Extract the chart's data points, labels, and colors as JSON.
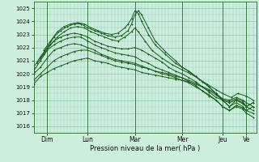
{
  "title": "Pression niveau de la mer( hPa )",
  "ylabel_values": [
    1016,
    1017,
    1018,
    1019,
    1020,
    1021,
    1022,
    1023,
    1024,
    1025
  ],
  "ylim": [
    1015.5,
    1025.5
  ],
  "xlim": [
    0,
    132
  ],
  "bg_color": "#cceedd",
  "grid_color": "#99ccbb",
  "line_color": "#1a5c1a",
  "marker_color": "#1a5c1a",
  "day_ticks": [
    {
      "label": "Dim",
      "x": 8
    },
    {
      "label": "Lun",
      "x": 32
    },
    {
      "label": "Mar",
      "x": 60
    },
    {
      "label": "Mer",
      "x": 88
    },
    {
      "label": "Jeu",
      "x": 112
    },
    {
      "label": "Ve",
      "x": 126
    }
  ],
  "day_lines": [
    8,
    32,
    60,
    88,
    112,
    126
  ],
  "series": [
    [
      0,
      1019.2,
      4,
      1019.8,
      8,
      1020.1,
      12,
      1020.4,
      16,
      1020.6,
      20,
      1020.8,
      24,
      1021.0,
      28,
      1021.1,
      32,
      1021.2,
      36,
      1021.0,
      40,
      1020.9,
      44,
      1020.8,
      48,
      1020.6,
      52,
      1020.5,
      56,
      1020.4,
      60,
      1020.3,
      64,
      1020.1,
      68,
      1020.0,
      72,
      1019.9,
      76,
      1019.8,
      80,
      1019.7,
      84,
      1019.6,
      88,
      1019.5,
      92,
      1019.4,
      96,
      1019.2,
      100,
      1019.0,
      104,
      1018.8,
      108,
      1018.5,
      112,
      1018.1,
      116,
      1018.0,
      120,
      1018.2,
      124,
      1018.0,
      126,
      1017.8,
      130,
      1017.5
    ],
    [
      0,
      1019.5,
      4,
      1020.0,
      8,
      1020.5,
      12,
      1021.0,
      16,
      1021.3,
      20,
      1021.5,
      24,
      1021.7,
      28,
      1021.8,
      32,
      1021.8,
      36,
      1021.6,
      40,
      1021.4,
      44,
      1021.2,
      48,
      1021.0,
      52,
      1020.9,
      56,
      1020.8,
      60,
      1020.7,
      64,
      1020.5,
      68,
      1020.4,
      72,
      1020.2,
      76,
      1020.1,
      80,
      1020.0,
      84,
      1019.8,
      88,
      1019.7,
      92,
      1019.5,
      96,
      1019.3,
      100,
      1019.0,
      104,
      1018.7,
      108,
      1018.4,
      112,
      1018.0,
      116,
      1017.9,
      120,
      1018.1,
      124,
      1017.9,
      126,
      1017.5,
      130,
      1017.2
    ],
    [
      0,
      1020.0,
      4,
      1020.5,
      8,
      1021.2,
      12,
      1021.8,
      16,
      1022.0,
      20,
      1022.2,
      24,
      1022.3,
      28,
      1022.2,
      32,
      1022.0,
      36,
      1021.8,
      40,
      1021.5,
      44,
      1021.3,
      48,
      1021.1,
      52,
      1021.0,
      56,
      1020.9,
      60,
      1020.8,
      64,
      1020.6,
      68,
      1020.4,
      72,
      1020.2,
      76,
      1020.0,
      80,
      1019.9,
      84,
      1019.7,
      88,
      1019.5,
      92,
      1019.3,
      96,
      1019.0,
      100,
      1018.7,
      104,
      1018.4,
      108,
      1018.0,
      112,
      1017.5,
      116,
      1017.2,
      120,
      1017.5,
      124,
      1017.3,
      126,
      1017.0,
      130,
      1016.7
    ],
    [
      0,
      1020.2,
      4,
      1021.0,
      8,
      1021.8,
      12,
      1022.2,
      16,
      1022.5,
      20,
      1022.7,
      24,
      1022.8,
      28,
      1022.8,
      32,
      1022.5,
      36,
      1022.2,
      40,
      1022.0,
      44,
      1021.8,
      48,
      1021.6,
      52,
      1021.5,
      56,
      1021.4,
      60,
      1021.3,
      64,
      1021.0,
      68,
      1020.8,
      72,
      1020.5,
      76,
      1020.3,
      80,
      1020.1,
      84,
      1019.9,
      88,
      1019.7,
      92,
      1019.4,
      96,
      1019.1,
      100,
      1018.7,
      104,
      1018.3,
      108,
      1018.0,
      112,
      1017.5,
      116,
      1017.2,
      120,
      1017.6,
      124,
      1017.4,
      126,
      1017.2,
      130,
      1017.0
    ],
    [
      0,
      1020.5,
      4,
      1021.3,
      8,
      1022.0,
      12,
      1022.5,
      16,
      1022.8,
      20,
      1023.0,
      24,
      1023.1,
      28,
      1023.0,
      32,
      1022.8,
      36,
      1022.5,
      40,
      1022.3,
      44,
      1022.1,
      48,
      1022.0,
      52,
      1021.9,
      56,
      1021.9,
      60,
      1022.0,
      64,
      1021.8,
      68,
      1021.5,
      72,
      1021.2,
      76,
      1020.9,
      80,
      1020.5,
      84,
      1020.2,
      88,
      1020.0,
      92,
      1019.7,
      96,
      1019.4,
      100,
      1019.0,
      104,
      1018.6,
      108,
      1018.2,
      112,
      1018.0,
      116,
      1017.8,
      120,
      1018.0,
      124,
      1017.7,
      126,
      1017.5,
      130,
      1017.8
    ],
    [
      2,
      1020.8,
      6,
      1021.5,
      10,
      1022.2,
      14,
      1022.8,
      18,
      1023.2,
      22,
      1023.5,
      26,
      1023.6,
      30,
      1023.5,
      34,
      1023.2,
      38,
      1023.0,
      42,
      1022.8,
      46,
      1022.6,
      50,
      1022.5,
      54,
      1022.8,
      58,
      1023.2,
      60,
      1023.5,
      62,
      1023.2,
      66,
      1022.5,
      70,
      1021.8,
      76,
      1021.2,
      82,
      1020.7,
      88,
      1020.3,
      93,
      1020.0,
      98,
      1019.6,
      103,
      1019.2,
      108,
      1018.8,
      112,
      1018.5,
      117,
      1018.2,
      121,
      1018.5,
      126,
      1018.3,
      130,
      1018.0
    ],
    [
      4,
      1021.2,
      8,
      1022.0,
      12,
      1022.8,
      16,
      1023.3,
      20,
      1023.6,
      24,
      1023.8,
      28,
      1023.8,
      32,
      1023.5,
      36,
      1023.3,
      40,
      1023.1,
      44,
      1022.9,
      48,
      1022.8,
      52,
      1022.9,
      56,
      1023.3,
      58,
      1023.8,
      60,
      1024.5,
      62,
      1024.8,
      64,
      1024.5,
      68,
      1023.5,
      72,
      1022.5,
      78,
      1021.7,
      84,
      1021.0,
      88,
      1020.5,
      92,
      1020.2,
      96,
      1019.8,
      100,
      1019.4,
      104,
      1019.0,
      108,
      1018.5,
      112,
      1018.0,
      116,
      1017.5,
      120,
      1017.8,
      124,
      1017.5,
      126,
      1017.2,
      130,
      1017.5
    ],
    [
      6,
      1021.8,
      10,
      1022.5,
      14,
      1023.2,
      18,
      1023.6,
      22,
      1023.8,
      26,
      1023.9,
      30,
      1023.8,
      34,
      1023.5,
      38,
      1023.3,
      42,
      1023.1,
      46,
      1023.0,
      50,
      1023.1,
      54,
      1023.5,
      56,
      1023.8,
      58,
      1024.2,
      60,
      1024.8,
      62,
      1024.6,
      64,
      1024.0,
      68,
      1023.0,
      72,
      1022.2,
      78,
      1021.5,
      84,
      1020.8,
      88,
      1020.5,
      92,
      1020.2,
      96,
      1019.8,
      100,
      1019.4,
      104,
      1019.0,
      108,
      1018.5,
      112,
      1018.0,
      116,
      1017.5,
      120,
      1018.0,
      124,
      1017.8,
      126,
      1017.5,
      130,
      1017.8
    ]
  ]
}
